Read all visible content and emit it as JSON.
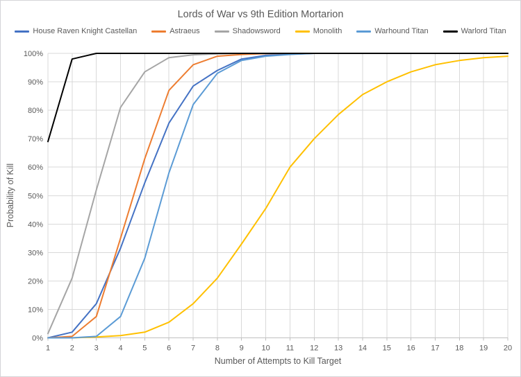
{
  "window": {
    "background": "#ffffff",
    "border_color": "#d4d4d8"
  },
  "chart_data": {
    "type": "line",
    "title": "Lords of War vs 9th Edition Mortarion",
    "xlabel": "Number of Attempts to Kill Target",
    "ylabel": "Probability of Kill",
    "x": [
      1,
      2,
      3,
      4,
      5,
      6,
      7,
      8,
      9,
      10,
      11,
      12,
      13,
      14,
      15,
      16,
      17,
      18,
      19,
      20
    ],
    "x_tick_labels": [
      "1",
      "2",
      "3",
      "4",
      "5",
      "6",
      "7",
      "8",
      "9",
      "10",
      "11",
      "12",
      "13",
      "14",
      "15",
      "16",
      "17",
      "18",
      "19",
      "20"
    ],
    "y_tick_labels": [
      "0%",
      "10%",
      "20%",
      "30%",
      "40%",
      "50%",
      "60%",
      "70%",
      "80%",
      "90%",
      "100%"
    ],
    "ylim": [
      0,
      100
    ],
    "xlim": [
      1,
      20
    ],
    "grid": true,
    "legend_position": "top",
    "series": [
      {
        "name": "House Raven Knight Castellan",
        "color": "#4472C4",
        "values": [
          0,
          2,
          12,
          31.5,
          54.5,
          75.5,
          88.5,
          94,
          98,
          99.3,
          99.7,
          100,
          100,
          100,
          100,
          100,
          100,
          100,
          100,
          100
        ]
      },
      {
        "name": "Astraeus",
        "color": "#ED7D31",
        "values": [
          0,
          0.5,
          7.5,
          35,
          63,
          87,
          96,
          99,
          99.6,
          99.9,
          100,
          100,
          100,
          100,
          100,
          100,
          100,
          100,
          100,
          100
        ]
      },
      {
        "name": "Shadowsword",
        "color": "#A5A5A5",
        "values": [
          1.5,
          21,
          52,
          81,
          93.5,
          98.5,
          99.5,
          99.8,
          100,
          100,
          100,
          100,
          100,
          100,
          100,
          100,
          100,
          100,
          100,
          100
        ]
      },
      {
        "name": "Monolith",
        "color": "#FFC000",
        "values": [
          0,
          0,
          0.3,
          0.8,
          2,
          5.5,
          12,
          21,
          33,
          45.5,
          60,
          70,
          78.5,
          85.5,
          90,
          93.5,
          96,
          97.5,
          98.5,
          99
        ]
      },
      {
        "name": "Warhound Titan",
        "color": "#5B9BD5",
        "values": [
          0,
          0,
          0.5,
          7.5,
          28,
          58,
          82,
          93,
          97.5,
          99,
          99.6,
          100,
          100,
          100,
          100,
          100,
          100,
          100,
          100,
          100
        ]
      },
      {
        "name": "Warlord Titan",
        "color": "#000000",
        "values": [
          69,
          98,
          100,
          100,
          100,
          100,
          100,
          100,
          100,
          100,
          100,
          100,
          100,
          100,
          100,
          100,
          100,
          100,
          100,
          100
        ]
      }
    ],
    "style": {
      "gridline_color": "#D9D9D9",
      "axis_line_color": "#BFBFBF",
      "text_color": "#595959",
      "line_width": 2
    }
  }
}
